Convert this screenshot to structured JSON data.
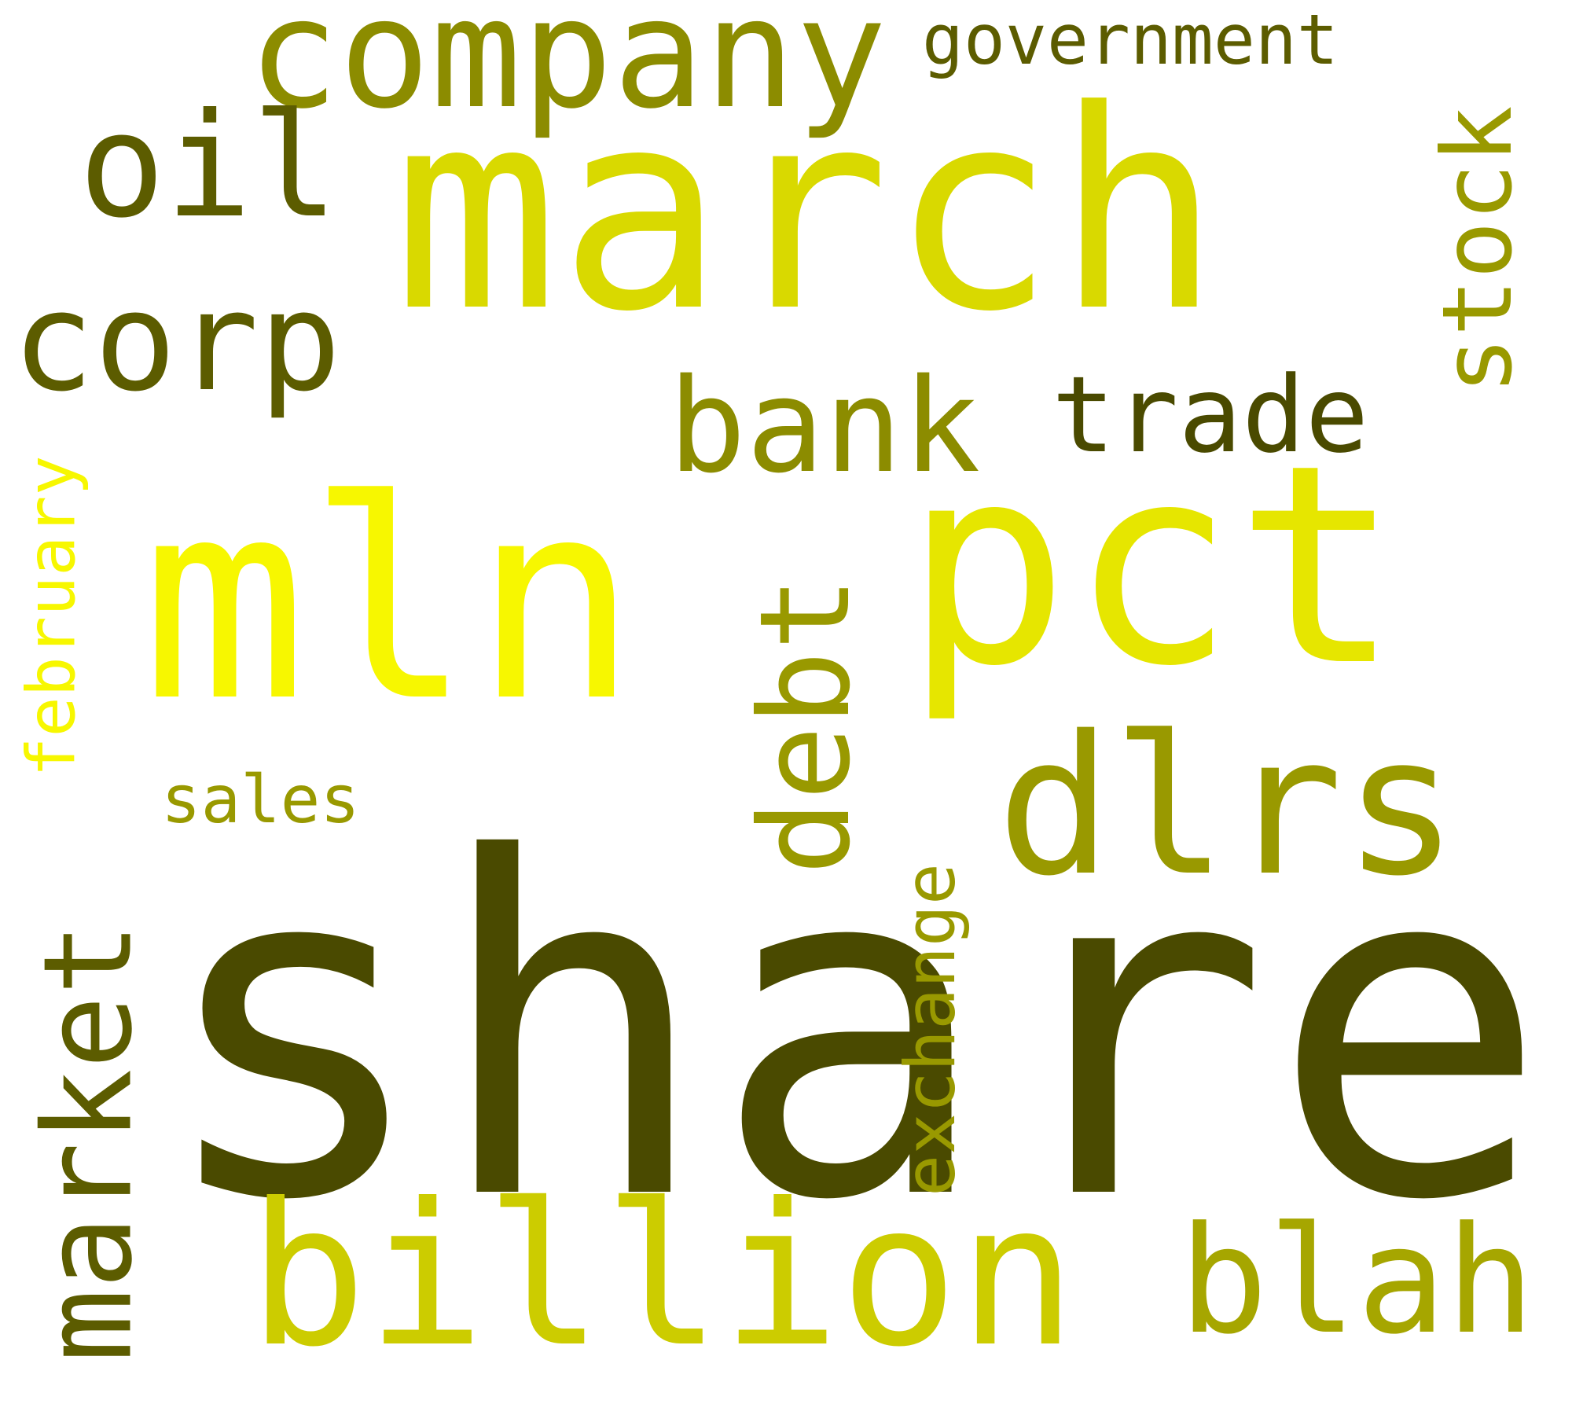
{
  "words": {
    "share": {
      "text": "share",
      "color": "#4a4a00"
    },
    "march": {
      "text": "march",
      "color": "#d9d900"
    },
    "mln": {
      "text": "mln",
      "color": "#f7f700"
    },
    "pct": {
      "text": "pct",
      "color": "#e6e600"
    },
    "billion": {
      "text": "billion",
      "color": "#cccc00"
    },
    "dlrs": {
      "text": "dlrs",
      "color": "#999900"
    },
    "company": {
      "text": "company",
      "color": "#8c8c00"
    },
    "blah": {
      "text": "blah",
      "color": "#a6a600"
    },
    "corp": {
      "text": "corp",
      "color": "#5c5c00"
    },
    "oil": {
      "text": "oil",
      "color": "#5c5c00"
    },
    "bank": {
      "text": "bank",
      "color": "#8c8c00"
    },
    "trade": {
      "text": "trade",
      "color": "#4a4a00"
    },
    "government": {
      "text": "government",
      "color": "#5c5c00"
    },
    "sales": {
      "text": "sales",
      "color": "#999900"
    },
    "market": {
      "text": "market",
      "color": "#5c5c00"
    },
    "stock": {
      "text": "stock",
      "color": "#999900"
    },
    "debt": {
      "text": "debt",
      "color": "#999900"
    },
    "february": {
      "text": "february",
      "color": "#f7f700"
    },
    "exchange": {
      "text": "exchange",
      "color": "#999900"
    }
  }
}
